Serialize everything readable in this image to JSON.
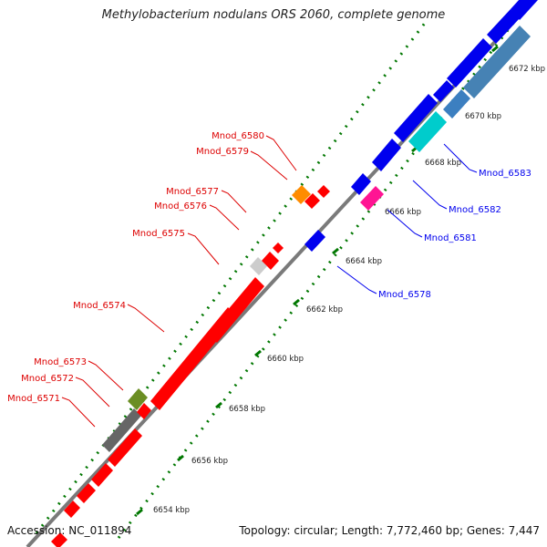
{
  "title": "Methylobacterium nodulans ORS 2060, complete genome",
  "accession": "Accession: NC_011894",
  "summary": "Topology: circular; Length: 7,772,460 bp; Genes: 7,447",
  "colors": {
    "forward": "#ff0000",
    "reverse": "#0000ee",
    "backbone": "#808080",
    "ticks": "#007700"
  },
  "scale_labels": [
    "6654 kbp",
    "6656 kbp",
    "6658 kbp",
    "6660 kbp",
    "6662 kbp",
    "6664 kbp",
    "6666 kbp",
    "6668 kbp",
    "6670 kbp",
    "6672 kbp"
  ],
  "gene_labels": {
    "mnod_6580": "Mnod_6580",
    "mnod_6579": "Mnod_6579",
    "mnod_6577": "Mnod_6577",
    "mnod_6576": "Mnod_6576",
    "mnod_6575": "Mnod_6575",
    "mnod_6574": "Mnod_6574",
    "mnod_6573": "Mnod_6573",
    "mnod_6572": "Mnod_6572",
    "mnod_6571": "Mnod_6571",
    "mnod_6583": "Mnod_6583",
    "mnod_6582": "Mnod_6582",
    "mnod_6581": "Mnod_6581",
    "mnod_6578": "Mnod_6578"
  }
}
